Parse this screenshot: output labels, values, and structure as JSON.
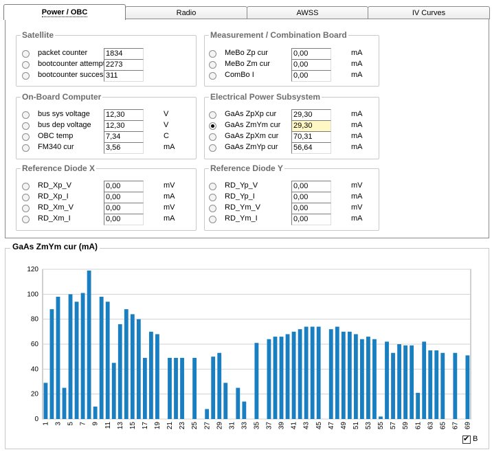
{
  "tabs": [
    "Power / OBC",
    "Radio",
    "AWSS",
    "IV Curves"
  ],
  "groups": {
    "satellite": {
      "title": "Satellite",
      "rows": [
        {
          "label": "packet counter",
          "value": "1834",
          "unit": ""
        },
        {
          "label": "bootcounter attempt",
          "value": "2273",
          "unit": ""
        },
        {
          "label": "bootcounter success",
          "value": "311",
          "unit": ""
        }
      ]
    },
    "obc": {
      "title": "On-Board Computer",
      "rows": [
        {
          "label": "bus sys voltage",
          "value": "12,30",
          "unit": "V"
        },
        {
          "label": "bus dep voltage",
          "value": "12,30",
          "unit": "V"
        },
        {
          "label": "OBC temp",
          "value": "7,34",
          "unit": "C"
        },
        {
          "label": "FM340 cur",
          "value": "3,56",
          "unit": "mA"
        }
      ]
    },
    "refx": {
      "title": "Reference Diode X",
      "rows": [
        {
          "label": "RD_Xp_V",
          "value": "0,00",
          "unit": "mV"
        },
        {
          "label": "RD_Xp_I",
          "value": "0,00",
          "unit": "mA"
        },
        {
          "label": "RD_Xm_V",
          "value": "0,00",
          "unit": "mV"
        },
        {
          "label": "RD_Xm_I",
          "value": "0,00",
          "unit": "mA"
        }
      ]
    },
    "mcb": {
      "title": "Measurement / Combination Board",
      "rows": [
        {
          "label": "MeBo Zp cur",
          "value": "0,00",
          "unit": "mA"
        },
        {
          "label": "MeBo Zm cur",
          "value": "0,00",
          "unit": "mA"
        },
        {
          "label": "ComBo I",
          "value": "0,00",
          "unit": "mA"
        }
      ]
    },
    "eps": {
      "title": "Electrical Power Subsystem",
      "rows": [
        {
          "label": "GaAs ZpXp cur",
          "value": "29,30",
          "unit": "mA"
        },
        {
          "label": "GaAs ZmYm cur",
          "value": "29,30",
          "unit": "mA"
        },
        {
          "label": "GaAs ZpXm cur",
          "value": "70,31",
          "unit": "mA"
        },
        {
          "label": "GaAs ZmYp cur",
          "value": "56,64",
          "unit": "mA"
        }
      ]
    },
    "refy": {
      "title": "Reference Diode Y",
      "rows": [
        {
          "label": "RD_Yp_V",
          "value": "0,00",
          "unit": "mV"
        },
        {
          "label": "RD_Yp_I",
          "value": "0,00",
          "unit": "mA"
        },
        {
          "label": "RD_Ym_V",
          "value": "0,00",
          "unit": "mV"
        },
        {
          "label": "RD_Ym_I",
          "value": "0,00",
          "unit": "mA"
        }
      ]
    }
  },
  "selected_measurement": "GaAs ZmYm cur",
  "colors": {
    "bar": "#1a7fc1",
    "highlight": "#fff7c4",
    "grid": "#d0d0d0"
  },
  "legend_checkbox": {
    "label": "B",
    "checked": true
  },
  "chart_data": {
    "type": "bar",
    "title": "GaAs ZmYm cur (mA)",
    "ylim": [
      0,
      120
    ],
    "yticks": [
      0,
      20,
      40,
      60,
      80,
      100,
      120
    ],
    "grid": true,
    "x": [
      1,
      2,
      3,
      4,
      5,
      6,
      7,
      8,
      9,
      10,
      11,
      12,
      13,
      14,
      15,
      16,
      17,
      18,
      19,
      20,
      21,
      22,
      23,
      24,
      25,
      26,
      27,
      28,
      29,
      30,
      31,
      32,
      33,
      34,
      35,
      36,
      37,
      38,
      39,
      40,
      41,
      42,
      43,
      44,
      45,
      46,
      47,
      48,
      49,
      50,
      51,
      52,
      53,
      54,
      55,
      56,
      57,
      58,
      59,
      60,
      61,
      62,
      63,
      64,
      65,
      66,
      67,
      68,
      69
    ],
    "xticklabels": [
      "1",
      "3",
      "5",
      "7",
      "9",
      "11",
      "13",
      "15",
      "17",
      "19",
      "21",
      "23",
      "25",
      "27",
      "29",
      "31",
      "33",
      "35",
      "37",
      "39",
      "41",
      "43",
      "45",
      "47",
      "49",
      "51",
      "53",
      "55",
      "57",
      "59",
      "61",
      "63",
      "65",
      "67",
      "69"
    ],
    "values": [
      29,
      88,
      98,
      25,
      100,
      94,
      101,
      119,
      10,
      98,
      94,
      45,
      76,
      88,
      84,
      80,
      49,
      70,
      68,
      null,
      49,
      49,
      49,
      null,
      49,
      null,
      8,
      50,
      53,
      29,
      null,
      25,
      14,
      null,
      61,
      null,
      64,
      66,
      66,
      68,
      70,
      72,
      74,
      74,
      74,
      null,
      72,
      74,
      70,
      70,
      68,
      64,
      66,
      64,
      2,
      62,
      53,
      60,
      59,
      59,
      21,
      62,
      55,
      55,
      53,
      null,
      53,
      null,
      51
    ]
  }
}
